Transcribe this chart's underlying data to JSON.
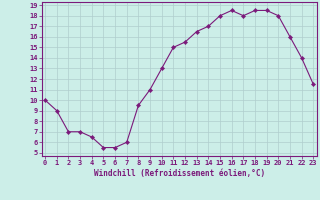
{
  "x": [
    0,
    1,
    2,
    3,
    4,
    5,
    6,
    7,
    8,
    9,
    10,
    11,
    12,
    13,
    14,
    15,
    16,
    17,
    18,
    19,
    20,
    21,
    22,
    23
  ],
  "y": [
    10.0,
    9.0,
    7.0,
    7.0,
    6.5,
    5.5,
    5.5,
    6.0,
    9.5,
    11.0,
    13.0,
    15.0,
    15.5,
    16.5,
    17.0,
    18.0,
    18.5,
    18.0,
    18.5,
    18.5,
    18.0,
    16.0,
    14.0,
    11.5
  ],
  "line_color": "#7b1a7b",
  "marker_color": "#7b1a7b",
  "bg_color": "#cceee8",
  "grid_color": "#b0cece",
  "xlabel": "Windchill (Refroidissement éolien,°C)",
  "ylim_min": 5,
  "ylim_max": 19,
  "xlim_min": 0,
  "xlim_max": 23,
  "yticks": [
    5,
    6,
    7,
    8,
    9,
    10,
    11,
    12,
    13,
    14,
    15,
    16,
    17,
    18,
    19
  ],
  "xticks": [
    0,
    1,
    2,
    3,
    4,
    5,
    6,
    7,
    8,
    9,
    10,
    11,
    12,
    13,
    14,
    15,
    16,
    17,
    18,
    19,
    20,
    21,
    22,
    23
  ],
  "tick_color": "#7b1a7b",
  "label_color": "#7b1a7b",
  "border_color": "#7b1a7b",
  "tick_fontsize": 5.0,
  "xlabel_fontsize": 5.5,
  "marker_size": 2.2,
  "line_width": 0.8
}
